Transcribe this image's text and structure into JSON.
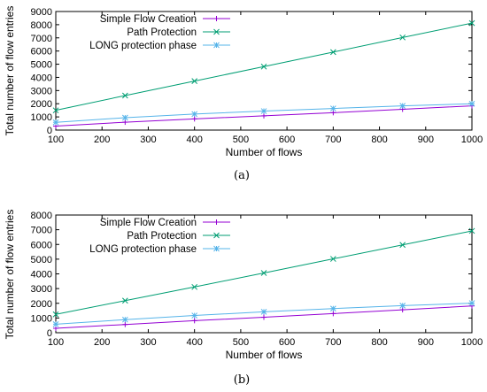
{
  "chart_data": [
    {
      "type": "line",
      "caption": "(a)",
      "xlabel": "Number of flows",
      "ylabel": "Total number of flow entries",
      "xlim": [
        100,
        1000
      ],
      "ylim": [
        0,
        9000
      ],
      "xticks": [
        100,
        200,
        300,
        400,
        500,
        600,
        700,
        800,
        900,
        1000
      ],
      "yticks": [
        0,
        1000,
        2000,
        3000,
        4000,
        5000,
        6000,
        7000,
        8000,
        9000
      ],
      "x": [
        100,
        250,
        400,
        550,
        700,
        850,
        1000
      ],
      "legend_position": "top-left",
      "series": [
        {
          "name": "Simple Flow Creation",
          "marker": "+",
          "color": "#9400d3",
          "values": [
            300,
            600,
            850,
            1080,
            1320,
            1580,
            1840
          ]
        },
        {
          "name": "Path Protection",
          "marker": "x",
          "color": "#009e73",
          "values": [
            1500,
            2620,
            3720,
            4820,
            5920,
            7030,
            8120
          ]
        },
        {
          "name": "LONG protection phase",
          "marker": "*",
          "color": "#56b4e9",
          "values": [
            590,
            940,
            1220,
            1440,
            1640,
            1840,
            2000
          ]
        }
      ]
    },
    {
      "type": "line",
      "caption": "(b)",
      "xlabel": "Number of flows",
      "ylabel": "Total number of flow entries",
      "xlim": [
        100,
        1000
      ],
      "ylim": [
        0,
        8000
      ],
      "xticks": [
        100,
        200,
        300,
        400,
        500,
        600,
        700,
        800,
        900,
        1000
      ],
      "yticks": [
        0,
        1000,
        2000,
        3000,
        4000,
        5000,
        6000,
        7000,
        8000
      ],
      "x": [
        100,
        250,
        400,
        550,
        700,
        850,
        1000
      ],
      "legend_position": "top-left",
      "series": [
        {
          "name": "Simple Flow Creation",
          "marker": "+",
          "color": "#9400d3",
          "values": [
            300,
            560,
            820,
            1050,
            1300,
            1560,
            1820
          ]
        },
        {
          "name": "Path Protection",
          "marker": "x",
          "color": "#009e73",
          "values": [
            1250,
            2180,
            3110,
            4060,
            5020,
            5970,
            6920
          ]
        },
        {
          "name": "LONG protection phase",
          "marker": "*",
          "color": "#56b4e9",
          "values": [
            580,
            890,
            1170,
            1420,
            1640,
            1840,
            2010
          ]
        }
      ]
    }
  ]
}
